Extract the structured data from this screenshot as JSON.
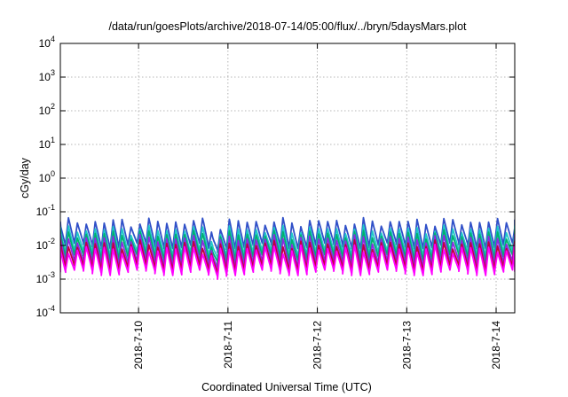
{
  "chart_data": {
    "type": "line",
    "title": "/data/run/goesPlots/archive/2018-07-14/05:00/flux/../bryn/5daysMars.plot",
    "xlabel": "Coordinated Universal Time (UTC)",
    "ylabel": "cGy/day",
    "y_scale": "log",
    "ylim": [
      0.0001,
      10000
    ],
    "y_ticks": [
      {
        "base": "10",
        "exp": "4"
      },
      {
        "base": "10",
        "exp": "3"
      },
      {
        "base": "10",
        "exp": "2"
      },
      {
        "base": "10",
        "exp": "1"
      },
      {
        "base": "10",
        "exp": "0"
      },
      {
        "base": "10",
        "exp": "-1"
      },
      {
        "base": "10",
        "exp": "-2"
      },
      {
        "base": "10",
        "exp": "-3"
      },
      {
        "base": "10",
        "exp": "-4"
      }
    ],
    "x_range": [
      "2018-07-09 03:00",
      "2018-07-14 05:00"
    ],
    "x_ticks": [
      "2018-7-10",
      "2018-7-11",
      "2018-7-12",
      "2018-7-13",
      "2018-7-14"
    ],
    "grid": true,
    "legend": "none",
    "pattern": "sawtooth, about 10 peaks per day; drop near 2018-07-10 20:00",
    "series": [
      {
        "color": "#3050c8",
        "peak": 0.05,
        "trough": 0.01
      },
      {
        "color": "#20c8c8",
        "peak": 0.03,
        "trough": 0.006
      },
      {
        "color": "#00b070",
        "peak": 0.022,
        "trough": 0.0045
      },
      {
        "color": "#8a2be2",
        "peak": 0.016,
        "trough": 0.003
      },
      {
        "color": "#c00040",
        "peak": 0.011,
        "trough": 0.0022
      },
      {
        "color": "#ff00ff",
        "peak": 0.008,
        "trough": 0.0016
      }
    ]
  }
}
